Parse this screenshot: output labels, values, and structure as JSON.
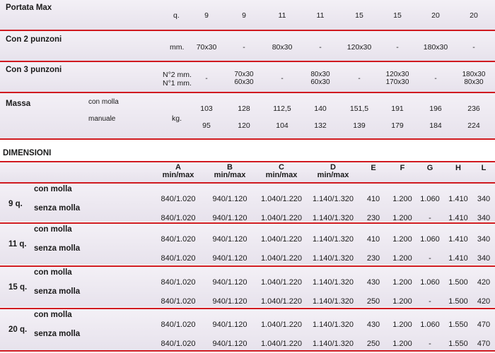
{
  "specs": {
    "portata": {
      "label": "Portata Max",
      "unit": "q.",
      "values": [
        "9",
        "9",
        "11",
        "11",
        "15",
        "15",
        "20",
        "20"
      ]
    },
    "due_punzoni": {
      "label": "Con 2 punzoni",
      "unit": "mm.",
      "values": [
        "70x30",
        "-",
        "80x30",
        "-",
        "120x30",
        "-",
        "180x30",
        "-"
      ]
    },
    "tre_punzoni": {
      "label": "Con 3 punzoni",
      "unit1": "N°2 mm.",
      "unit2": "N°1 mm.",
      "values": [
        [
          "-",
          ""
        ],
        [
          "70x30",
          "60x30"
        ],
        [
          "-",
          ""
        ],
        [
          "80x30",
          "60x30"
        ],
        [
          "-",
          ""
        ],
        [
          "120x30",
          "170x30"
        ],
        [
          "-",
          ""
        ],
        [
          "180x30",
          "80x30"
        ]
      ]
    },
    "massa": {
      "label": "Massa",
      "sub1": "con molla",
      "sub2": "manuale",
      "unit": "kg.",
      "row1": [
        "103",
        "128",
        "112,5",
        "140",
        "151,5",
        "191",
        "196",
        "236"
      ],
      "row2": [
        "95",
        "120",
        "104",
        "132",
        "139",
        "179",
        "184",
        "224"
      ]
    }
  },
  "dimensioni": {
    "title": "DIMENSIONI",
    "headers": [
      {
        "l1": "A",
        "l2": "min/max"
      },
      {
        "l1": "B",
        "l2": "min/max"
      },
      {
        "l1": "C",
        "l2": "min/max"
      },
      {
        "l1": "D",
        "l2": "min/max"
      },
      {
        "l1": "E",
        "l2": ""
      },
      {
        "l1": "F",
        "l2": ""
      },
      {
        "l1": "G",
        "l2": ""
      },
      {
        "l1": "H",
        "l2": ""
      },
      {
        "l1": "L",
        "l2": ""
      }
    ],
    "groups": [
      {
        "label": "9 q.",
        "rows": [
          {
            "label": "con molla",
            "cells": [
              "840/1.020",
              "940/1.120",
              "1.040/1.220",
              "1.140/1.320",
              "410",
              "1.200",
              "1.060",
              "1.410",
              "340"
            ]
          },
          {
            "label": "senza molla",
            "cells": [
              "840/1.020",
              "940/1.120",
              "1.040/1.220",
              "1.140/1.320",
              "230",
              "1.200",
              "-",
              "1.410",
              "340"
            ]
          }
        ]
      },
      {
        "label": "11 q.",
        "rows": [
          {
            "label": "con molla",
            "cells": [
              "840/1.020",
              "940/1.120",
              "1.040/1.220",
              "1.140/1.320",
              "410",
              "1.200",
              "1.060",
              "1.410",
              "340"
            ]
          },
          {
            "label": "senza molla",
            "cells": [
              "840/1.020",
              "940/1.120",
              "1.040/1.220",
              "1.140/1.320",
              "230",
              "1.200",
              "-",
              "1.410",
              "340"
            ]
          }
        ]
      },
      {
        "label": "15 q.",
        "rows": [
          {
            "label": "con molla",
            "cells": [
              "840/1.020",
              "940/1.120",
              "1.040/1.220",
              "1.140/1.320",
              "430",
              "1.200",
              "1.060",
              "1.500",
              "420"
            ]
          },
          {
            "label": "senza molla",
            "cells": [
              "840/1.020",
              "940/1.120",
              "1.040/1.220",
              "1.140/1.320",
              "250",
              "1.200",
              "-",
              "1.500",
              "420"
            ]
          }
        ]
      },
      {
        "label": "20 q.",
        "rows": [
          {
            "label": "con molla",
            "cells": [
              "840/1.020",
              "940/1.120",
              "1.040/1.220",
              "1.140/1.320",
              "430",
              "1.200",
              "1.060",
              "1.550",
              "470"
            ]
          },
          {
            "label": "senza molla",
            "cells": [
              "840/1.020",
              "940/1.120",
              "1.040/1.220",
              "1.140/1.320",
              "250",
              "1.200",
              "-",
              "1.550",
              "470"
            ]
          }
        ]
      }
    ]
  },
  "colors": {
    "accent": "#d01a20",
    "band": "#ebe6ef"
  }
}
